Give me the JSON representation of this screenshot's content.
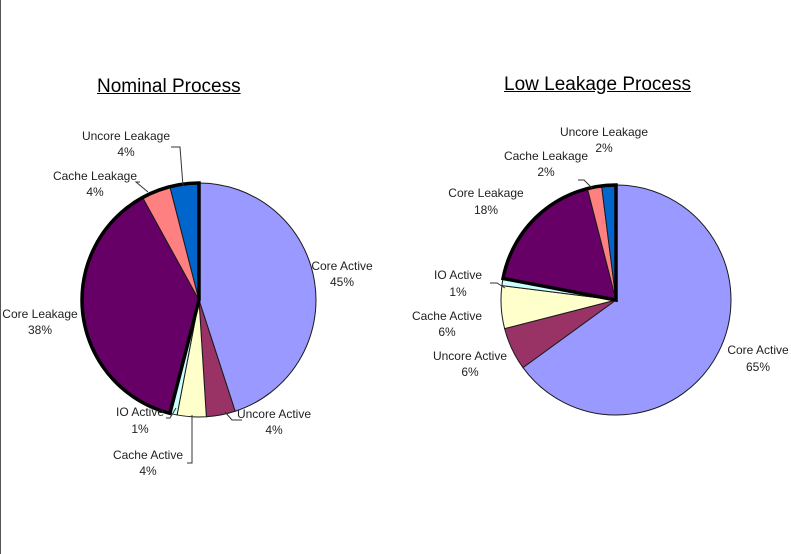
{
  "chart_data": [
    {
      "type": "pie",
      "title": "Nominal Process",
      "slices": [
        {
          "label": "Core Active",
          "value": 45,
          "pct_text": "45%",
          "color": "#9999FF"
        },
        {
          "label": "Uncore Active",
          "value": 4,
          "pct_text": "4%",
          "color": "#993366"
        },
        {
          "label": "Cache Active",
          "value": 4,
          "pct_text": "4%",
          "color": "#FFFFCC"
        },
        {
          "label": "IO Active",
          "value": 1,
          "pct_text": "1%",
          "color": "#CCFFFF"
        },
        {
          "label": "Core Leakage",
          "value": 38,
          "pct_text": "38%",
          "color": "#660066"
        },
        {
          "label": "Cache Leakage",
          "value": 4,
          "pct_text": "4%",
          "color": "#FF8080"
        },
        {
          "label": "Uncore Leakage",
          "value": 4,
          "pct_text": "4%",
          "color": "#0066CC"
        }
      ]
    },
    {
      "type": "pie",
      "title": "Low Leakage Process",
      "slices": [
        {
          "label": "Core Active",
          "value": 65,
          "pct_text": "65%",
          "color": "#9999FF"
        },
        {
          "label": "Uncore Active",
          "value": 6,
          "pct_text": "6%",
          "color": "#993366"
        },
        {
          "label": "Cache Active",
          "value": 6,
          "pct_text": "6%",
          "color": "#FFFFCC"
        },
        {
          "label": "IO Active",
          "value": 1,
          "pct_text": "1%",
          "color": "#CCFFFF"
        },
        {
          "label": "Core Leakage",
          "value": 18,
          "pct_text": "18%",
          "color": "#660066"
        },
        {
          "label": "Cache Leakage",
          "value": 2,
          "pct_text": "2%",
          "color": "#FF8080"
        },
        {
          "label": "Uncore Leakage",
          "value": 2,
          "pct_text": "2%",
          "color": "#0066CC"
        }
      ]
    }
  ]
}
